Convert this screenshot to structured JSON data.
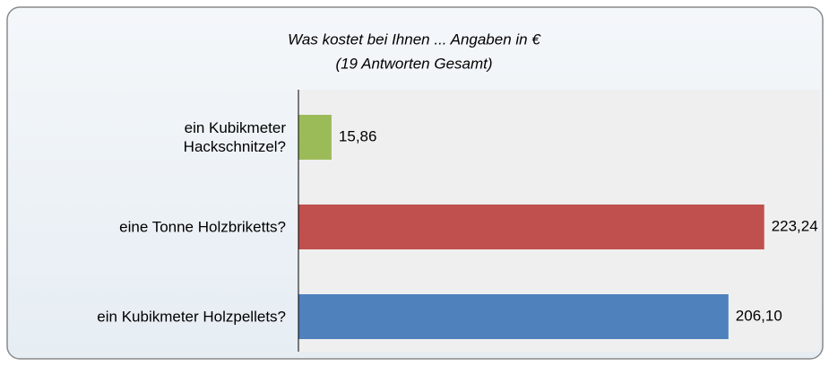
{
  "chart_data": {
    "type": "bar",
    "orientation": "horizontal",
    "title": "Was kostet bei Ihnen ... Angaben in €",
    "subtitle": "(19 Antworten Gesamt)",
    "categories": [
      "ein Kubikmeter\nHackschnitzel?",
      "eine Tonne Holzbriketts?",
      "ein Kubikmeter Holzpellets?"
    ],
    "values": [
      15.86,
      223.24,
      206.1
    ],
    "value_labels": [
      "15,86",
      "223,24",
      "206,10"
    ],
    "colors": [
      "#9bbb59",
      "#c0504d",
      "#4f81bd"
    ],
    "xlim": [
      0,
      250
    ]
  }
}
